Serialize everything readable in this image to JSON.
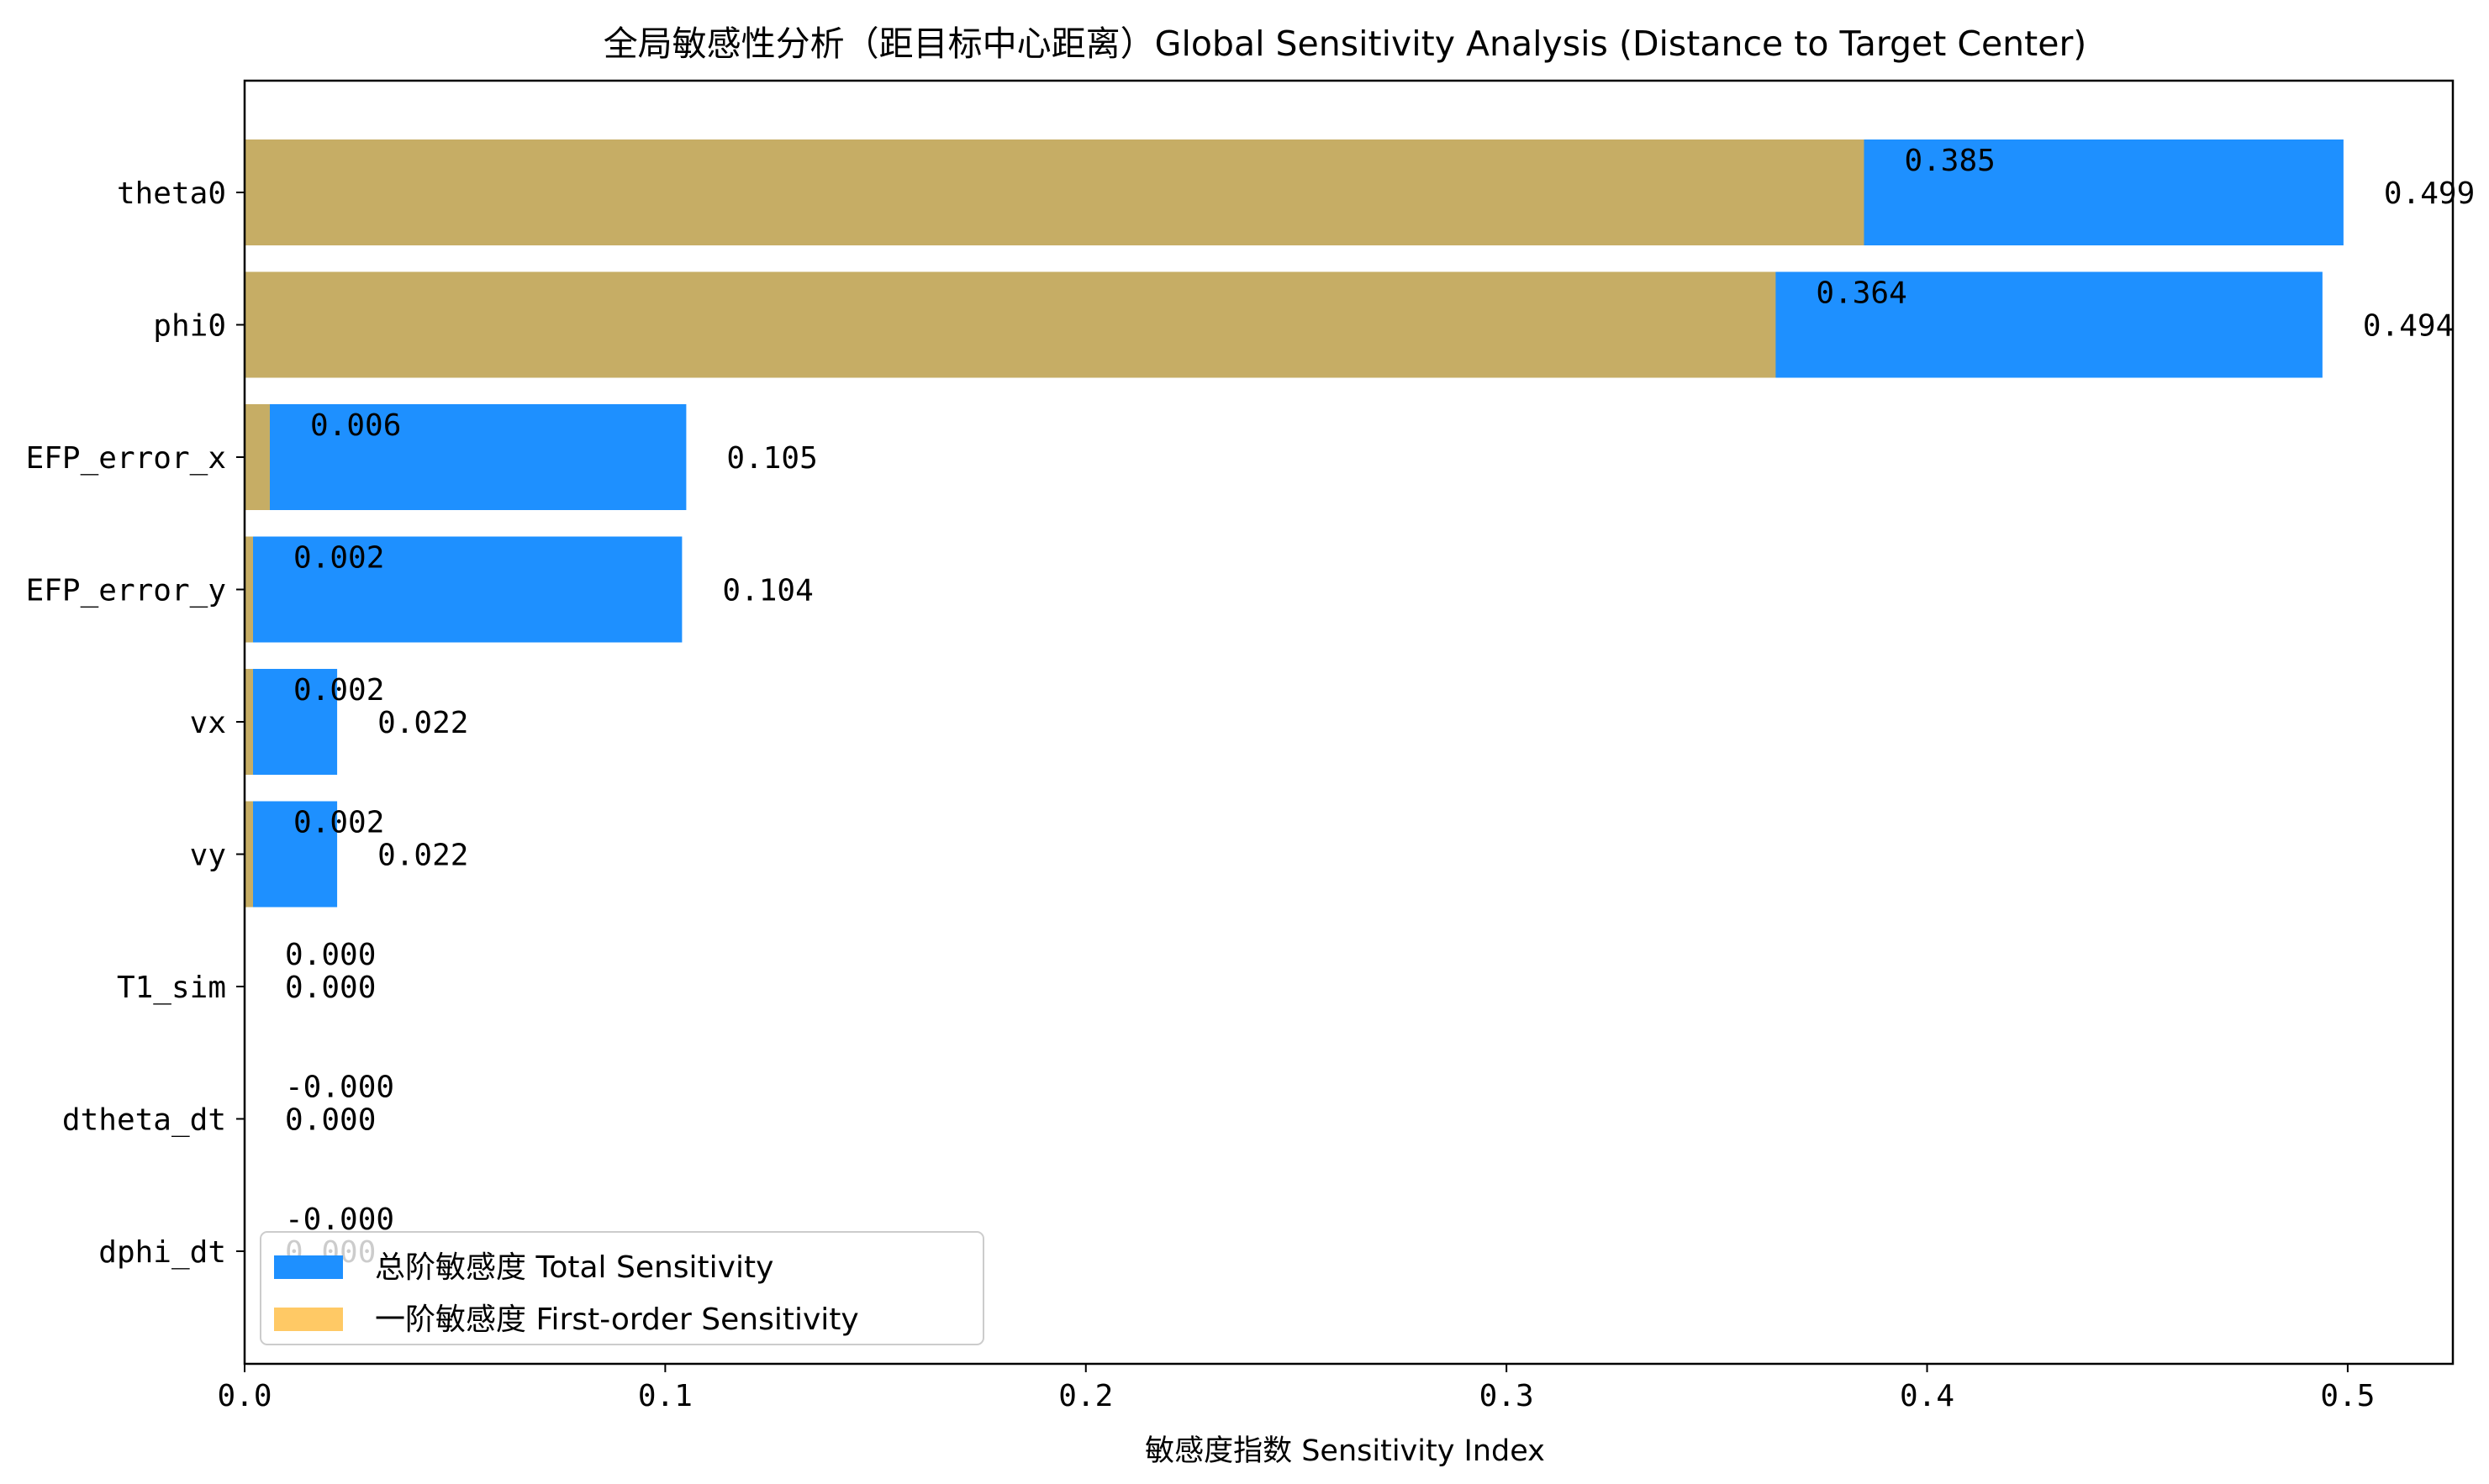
{
  "chart_data": {
    "type": "bar",
    "orientation": "horizontal",
    "title": "全局敏感性分析（距目标中心距离）Global Sensitivity Analysis (Distance to Target Center)",
    "xlabel": "敏感度指数 Sensitivity Index",
    "ylabel": "",
    "xlim": [
      0,
      0.525
    ],
    "x_ticks": [
      0.0,
      0.1,
      0.2,
      0.3,
      0.4,
      0.5
    ],
    "x_tick_labels": [
      "0.0",
      "0.1",
      "0.2",
      "0.3",
      "0.4",
      "0.5"
    ],
    "grid": false,
    "legend_position": "bottom-left",
    "categories": [
      "theta0",
      "phi0",
      "EFP_error_x",
      "EFP_error_y",
      "vx",
      "vy",
      "T1_sim",
      "dtheta_dt",
      "dphi_dt"
    ],
    "series": [
      {
        "name": "总阶敏感度 Total Sensitivity",
        "color": "#1E90FF",
        "values": [
          0.499,
          0.494,
          0.105,
          0.104,
          0.022,
          0.022,
          0.0,
          0.0,
          0.0
        ],
        "labels": [
          "0.499",
          "0.494",
          "0.105",
          "0.104",
          "0.022",
          "0.022",
          "0.000",
          "0.000",
          "0.000"
        ]
      },
      {
        "name": "一阶敏感度 First-order Sensitivity",
        "color": "#FFB732",
        "opacity": 0.75,
        "values": [
          0.385,
          0.364,
          0.006,
          0.002,
          0.002,
          0.002,
          0.0,
          0.0,
          0.0
        ],
        "labels": [
          "0.385",
          "0.364",
          "0.006",
          "0.002",
          "0.002",
          "0.002",
          "0.000",
          "-0.000",
          "-0.000"
        ]
      }
    ]
  }
}
